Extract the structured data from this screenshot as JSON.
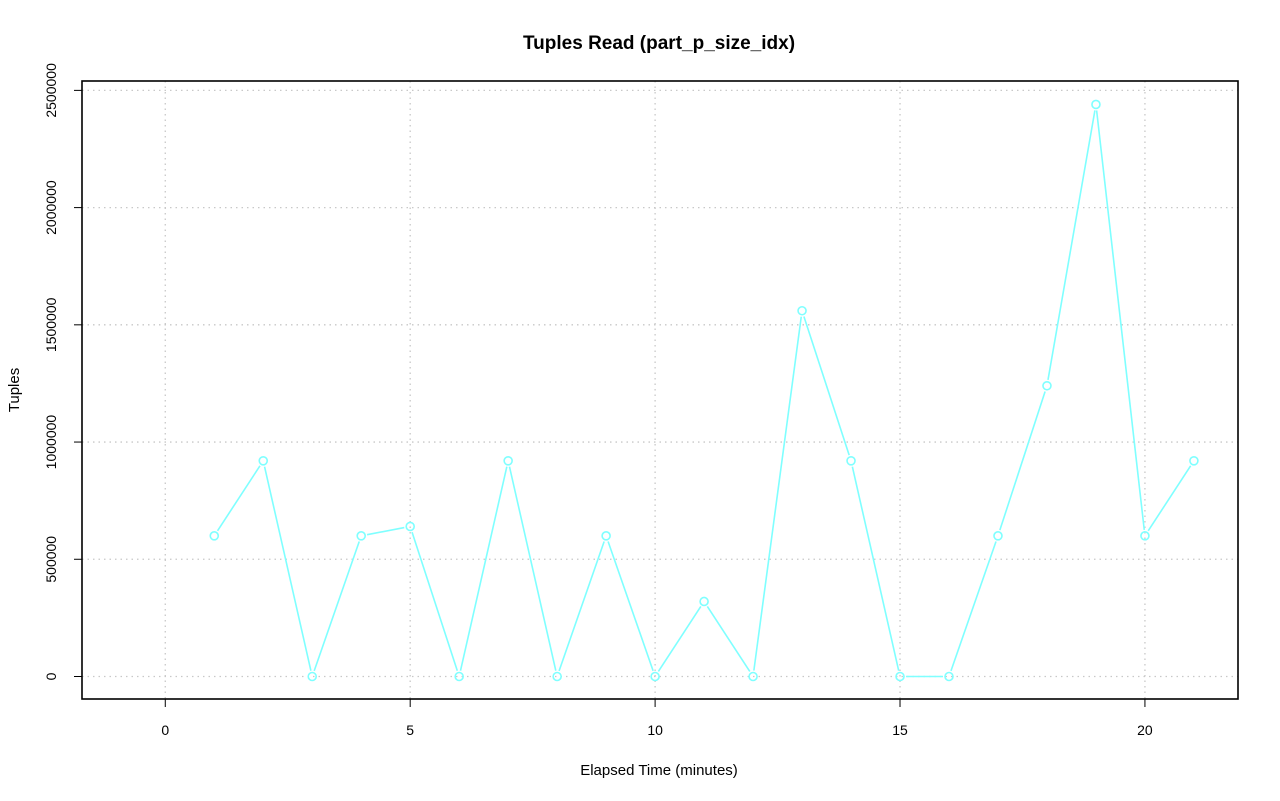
{
  "chart_data": {
    "type": "line",
    "title": "Tuples Read (part_p_size_idx)",
    "xlabel": "Elapsed Time (minutes)",
    "ylabel": "Tuples",
    "xlim": [
      -1.7,
      21.9
    ],
    "ylim": [
      -96000,
      2540000
    ],
    "x_ticks": [
      0,
      5,
      10,
      15,
      20
    ],
    "x_tick_labels": [
      "0",
      "5",
      "10",
      "15",
      "20"
    ],
    "y_ticks": [
      0,
      500000,
      1000000,
      1500000,
      2000000,
      2500000
    ],
    "y_tick_labels": [
      "0",
      "500000",
      "1000000",
      "1500000",
      "2000000",
      "2500000"
    ],
    "grid": true,
    "legend": "none",
    "series": [
      {
        "color": "#7fffff",
        "marker": "open-circle",
        "x": [
          1,
          2,
          3,
          4,
          5,
          6,
          7,
          8,
          9,
          10,
          11,
          12,
          13,
          14,
          15,
          16,
          17,
          18,
          19,
          20,
          21
        ],
        "y": [
          600000,
          920000,
          0,
          600000,
          640000,
          0,
          920000,
          0,
          600000,
          0,
          320000,
          0,
          1560000,
          920000,
          0,
          0,
          600000,
          1240000,
          2440000,
          600000,
          920000
        ]
      }
    ]
  }
}
